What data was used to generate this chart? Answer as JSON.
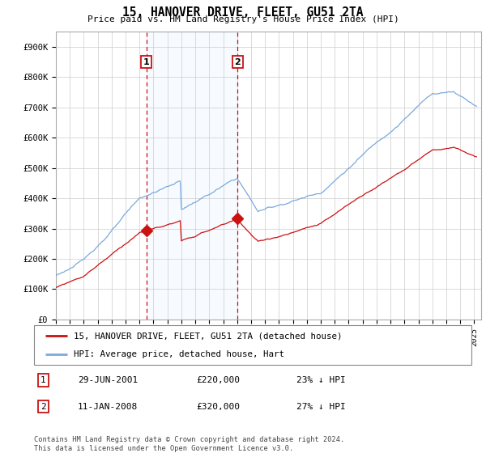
{
  "title": "15, HANOVER DRIVE, FLEET, GU51 2TA",
  "subtitle": "Price paid vs. HM Land Registry's House Price Index (HPI)",
  "hpi_label": "HPI: Average price, detached house, Hart",
  "property_label": "15, HANOVER DRIVE, FLEET, GU51 2TA (detached house)",
  "hpi_color": "#7aaadd",
  "property_color": "#cc1111",
  "vline_color": "#cc1111",
  "bg_shade": "#ddeeff",
  "plot_bg": "#ffffff",
  "ylim": [
    0,
    950000
  ],
  "yticks": [
    0,
    100000,
    200000,
    300000,
    400000,
    500000,
    600000,
    700000,
    800000,
    900000
  ],
  "ytick_labels": [
    "£0",
    "£100K",
    "£200K",
    "£300K",
    "£400K",
    "£500K",
    "£600K",
    "£700K",
    "£800K",
    "£900K"
  ],
  "sale1_date_num": 2001.49,
  "sale1_price": 220000,
  "sale1_label": "1",
  "sale1_date_str": "29-JUN-2001",
  "sale1_pct": "23% ↓ HPI",
  "sale2_date_num": 2008.03,
  "sale2_price": 320000,
  "sale2_label": "2",
  "sale2_date_str": "11-JAN-2008",
  "sale2_pct": "27% ↓ HPI",
  "footer": "Contains HM Land Registry data © Crown copyright and database right 2024.\nThis data is licensed under the Open Government Licence v3.0.",
  "xmin": 1995.0,
  "xmax": 2025.5
}
